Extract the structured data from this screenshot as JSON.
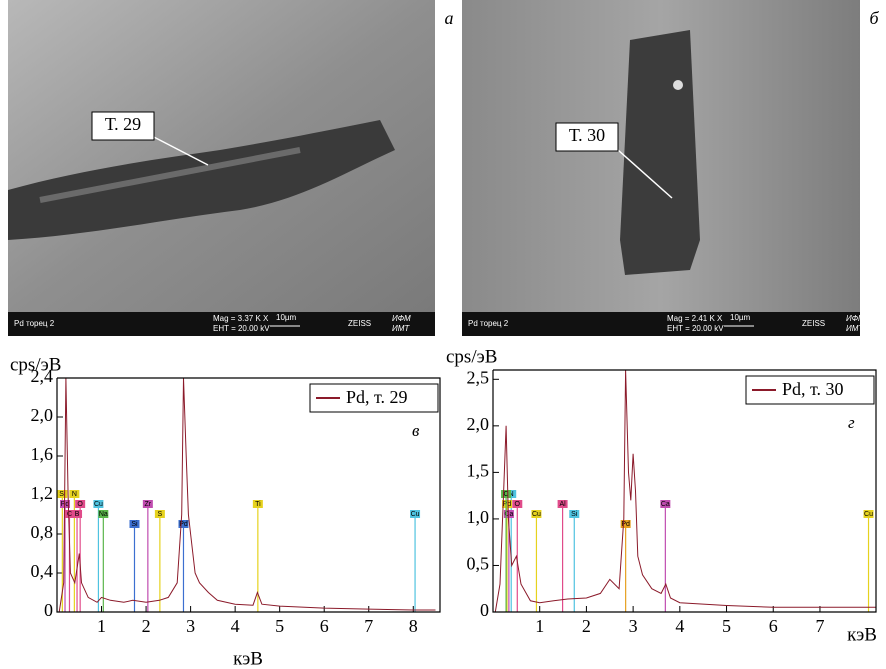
{
  "images": [
    {
      "letter": "а",
      "callout": "Т. 29",
      "info": "Pd торец 2",
      "mag": "Mag =  3.37 K X",
      "eht": "EHT = 20.00 kV",
      "scale": "10µm",
      "brand": "ZEISS",
      "logo1": "ИФМ",
      "logo2": "ИМТ"
    },
    {
      "letter": "б",
      "callout": "Т. 30",
      "info": "Pd торец 2",
      "mag": "Mag =  2.41 K X",
      "eht": "EHT = 20.00 kV",
      "scale": "10µm",
      "brand": "ZEISS",
      "logo1": "ИФМ",
      "logo2": "ИМТ"
    }
  ],
  "chart_data": [
    {
      "type": "line",
      "ylabel": "cps/эВ",
      "xlabel": "кэВ",
      "letter": "в",
      "xlim": [
        0,
        8.6
      ],
      "ylim": [
        0,
        2.4
      ],
      "xticks": [
        1,
        2,
        3,
        4,
        5,
        6,
        7,
        8
      ],
      "yticks": [
        0,
        {
          "value": 0.4,
          "label": "0,4"
        },
        {
          "value": 0.8,
          "label": "0,8"
        },
        {
          "value": 1.2,
          "label": "1,2"
        },
        {
          "value": 1.6,
          "label": "1,6"
        },
        {
          "value": 2.0,
          "label": "2,0"
        },
        {
          "value": 2.4,
          "label": "2,4"
        }
      ],
      "x": [
        0.05,
        0.15,
        0.2,
        0.25,
        0.3,
        0.4,
        0.5,
        0.55,
        0.7,
        0.9,
        1.0,
        1.2,
        1.5,
        1.7,
        2.0,
        2.3,
        2.5,
        2.7,
        2.8,
        2.84,
        2.9,
        2.95,
        3.0,
        3.1,
        3.2,
        3.4,
        3.6,
        4.0,
        4.4,
        4.5,
        4.6,
        5.0,
        6.0,
        7.0,
        8.0,
        8.5
      ],
      "series": [
        {
          "name": "Pd, т. 29",
          "color": "#8b1a2a",
          "values": [
            0,
            0.3,
            2.4,
            1.2,
            0.4,
            0.3,
            0.6,
            0.3,
            0.15,
            0.1,
            0.15,
            0.12,
            0.1,
            0.12,
            0.1,
            0.12,
            0.15,
            0.3,
            1.0,
            2.4,
            1.6,
            1.0,
            0.8,
            0.4,
            0.3,
            0.2,
            0.12,
            0.08,
            0.07,
            0.2,
            0.08,
            0.06,
            0.04,
            0.03,
            0.02,
            0.02
          ]
        }
      ],
      "markers": [
        {
          "label": "Si",
          "x": 0.12,
          "color": "#e6d21e"
        },
        {
          "label": "Pd",
          "x": 0.18,
          "color": "#c04db0"
        },
        {
          "label": "C",
          "x": 0.28,
          "color": "#e04b8a"
        },
        {
          "label": "N",
          "x": 0.39,
          "color": "#e6d21e"
        },
        {
          "label": "O",
          "x": 0.52,
          "color": "#e04b8a"
        },
        {
          "label": "B",
          "x": 0.45,
          "color": "#e04b8a"
        },
        {
          "label": "Cu",
          "x": 0.93,
          "color": "#4fc3e0"
        },
        {
          "label": "Na",
          "x": 1.04,
          "color": "#5ab54a"
        },
        {
          "label": "Si",
          "x": 1.74,
          "color": "#3c6fd0"
        },
        {
          "label": "Zr",
          "x": 2.04,
          "color": "#c04db0"
        },
        {
          "label": "S",
          "x": 2.31,
          "color": "#e6d21e"
        },
        {
          "label": "Pd",
          "x": 2.84,
          "color": "#3c6fd0"
        },
        {
          "label": "Ti",
          "x": 4.51,
          "color": "#e6d21e"
        },
        {
          "label": "Cu",
          "x": 8.04,
          "color": "#4fc3e0"
        }
      ]
    },
    {
      "type": "line",
      "ylabel": "cps/эВ",
      "xlabel": "кэВ",
      "letter": "г",
      "xlim": [
        0,
        8.2
      ],
      "ylim": [
        0,
        2.6
      ],
      "xticks": [
        1,
        2,
        3,
        4,
        5,
        6,
        7
      ],
      "yticks": [
        0,
        {
          "value": 0.5,
          "label": "0,5"
        },
        {
          "value": 1.0,
          "label": "1,0"
        },
        {
          "value": 1.5,
          "label": "1,5"
        },
        {
          "value": 2.0,
          "label": "2,0"
        },
        {
          "value": 2.5,
          "label": "2,5"
        }
      ],
      "x": [
        0.05,
        0.15,
        0.22,
        0.28,
        0.33,
        0.4,
        0.5,
        0.6,
        0.8,
        1.0,
        1.3,
        1.6,
        2.0,
        2.3,
        2.5,
        2.7,
        2.8,
        2.84,
        2.9,
        2.95,
        3.0,
        3.05,
        3.1,
        3.2,
        3.4,
        3.6,
        3.7,
        3.8,
        4.0,
        5.0,
        6.0,
        7.0,
        8.0,
        8.2
      ],
      "series": [
        {
          "name": "Pd, т. 30",
          "color": "#8b1a2a",
          "values": [
            0,
            0.3,
            1.2,
            2.0,
            1.0,
            0.5,
            0.6,
            0.3,
            0.12,
            0.1,
            0.12,
            0.14,
            0.15,
            0.2,
            0.35,
            0.25,
            1.0,
            2.6,
            1.5,
            1.2,
            1.7,
            1.3,
            0.6,
            0.4,
            0.25,
            0.2,
            0.3,
            0.15,
            0.1,
            0.07,
            0.05,
            0.05,
            0.05,
            0.05
          ]
        }
      ],
      "markers": [
        {
          "label": "N",
          "x": 0.39,
          "color": "#4fc3e0"
        },
        {
          "label": "Pd",
          "x": 0.3,
          "color": "#e6d21e"
        },
        {
          "label": "Ca",
          "x": 0.34,
          "color": "#c04db0"
        },
        {
          "label": "C",
          "x": 0.28,
          "color": "#5ab54a"
        },
        {
          "label": "O",
          "x": 0.52,
          "color": "#e04b8a"
        },
        {
          "label": "Cu",
          "x": 0.93,
          "color": "#e6d21e"
        },
        {
          "label": "Al",
          "x": 1.49,
          "color": "#e04b8a"
        },
        {
          "label": "Si",
          "x": 1.74,
          "color": "#4fc3e0"
        },
        {
          "label": "Pd",
          "x": 2.84,
          "color": "#e6a020"
        },
        {
          "label": "Ca",
          "x": 3.69,
          "color": "#c04db0"
        },
        {
          "label": "Cu",
          "x": 8.04,
          "color": "#e6d21e"
        }
      ]
    }
  ]
}
